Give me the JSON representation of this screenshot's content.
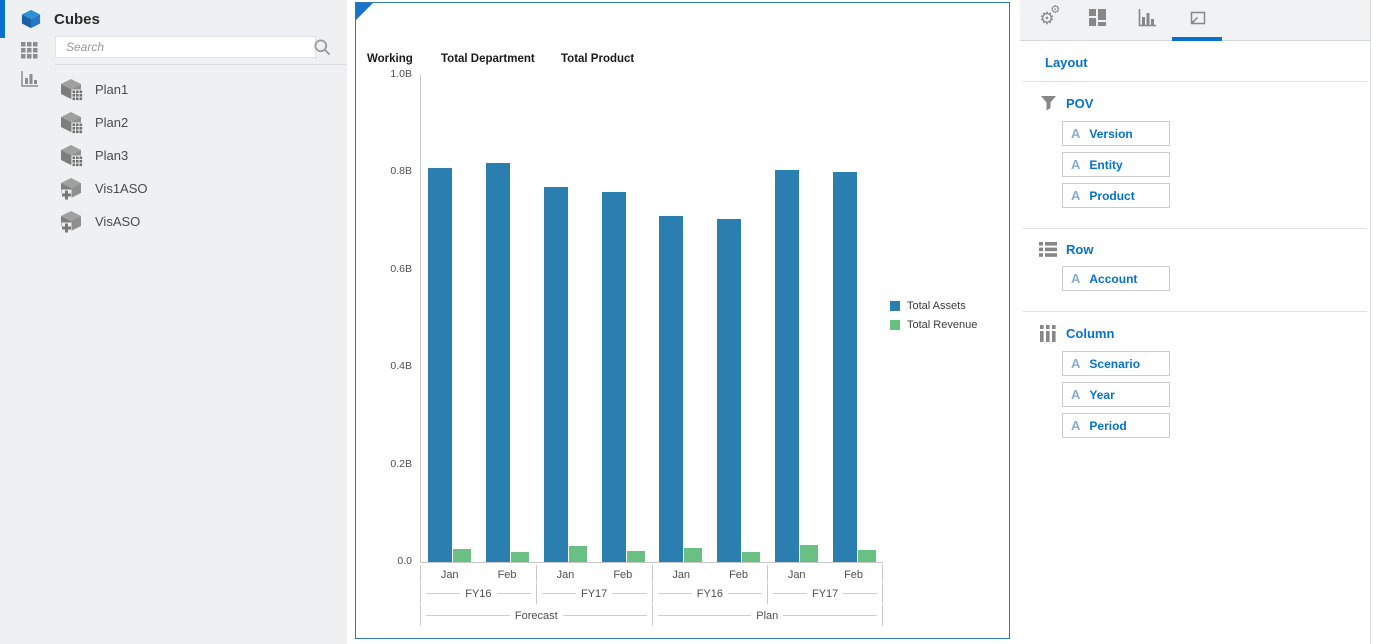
{
  "sidebar": {
    "title": "Cubes",
    "search_placeholder": "Search",
    "icons": [
      "cubes-icon",
      "grid-view-icon",
      "chart-view-icon",
      "search-icon"
    ],
    "cubes": [
      {
        "label": "Plan1",
        "type": "plan"
      },
      {
        "label": "Plan2",
        "type": "plan"
      },
      {
        "label": "Plan3",
        "type": "plan"
      },
      {
        "label": "Vis1ASO",
        "type": "aso"
      },
      {
        "label": "VisASO",
        "type": "aso"
      }
    ]
  },
  "chart_panel": {
    "pov_headers": [
      "Working",
      "Total Department",
      "Total Product"
    ]
  },
  "chart_data": {
    "type": "bar",
    "title": "",
    "categories": [
      "Jan",
      "Feb",
      "Jan",
      "Feb",
      "Jan",
      "Feb",
      "Jan",
      "Feb"
    ],
    "series": [
      {
        "name": "Total Assets",
        "color": "#2a7fb0",
        "values": [
          0.81,
          0.82,
          0.77,
          0.76,
          0.71,
          0.705,
          0.805,
          0.8
        ]
      },
      {
        "name": "Total Revenue",
        "color": "#6abf82",
        "values": [
          0.027,
          0.02,
          0.032,
          0.022,
          0.028,
          0.02,
          0.035,
          0.024
        ]
      }
    ],
    "year_groups": [
      {
        "label": "FY16",
        "span": 2
      },
      {
        "label": "FY17",
        "span": 2
      },
      {
        "label": "FY16",
        "span": 2
      },
      {
        "label": "FY17",
        "span": 2
      }
    ],
    "scenario_groups": [
      {
        "label": "Forecast",
        "span": 4
      },
      {
        "label": "Plan",
        "span": 4
      }
    ],
    "y_ticks": [
      "1.0B",
      "0.8B",
      "0.6B",
      "0.4B",
      "0.2B",
      "0.0"
    ],
    "ylim": [
      0,
      1.0
    ],
    "unit": "billions",
    "grid": false,
    "legend_position": "right"
  },
  "right_panel": {
    "title": "Layout",
    "tabs": [
      {
        "name": "settings",
        "icon": "gears-icon",
        "selected": false
      },
      {
        "name": "tiles",
        "icon": "tiles-icon",
        "selected": false
      },
      {
        "name": "chart",
        "icon": "bar-chart-icon",
        "selected": false
      },
      {
        "name": "layout",
        "icon": "layout-icon",
        "selected": true
      }
    ],
    "accent_color": "#0572ce",
    "sections": [
      {
        "name": "POV",
        "icon": "funnel-icon",
        "items": [
          "Version",
          "Entity",
          "Product"
        ]
      },
      {
        "name": "Row",
        "icon": "row-icon",
        "items": [
          "Account"
        ]
      },
      {
        "name": "Column",
        "icon": "column-icon",
        "items": [
          "Scenario",
          "Year",
          "Period"
        ]
      }
    ]
  }
}
